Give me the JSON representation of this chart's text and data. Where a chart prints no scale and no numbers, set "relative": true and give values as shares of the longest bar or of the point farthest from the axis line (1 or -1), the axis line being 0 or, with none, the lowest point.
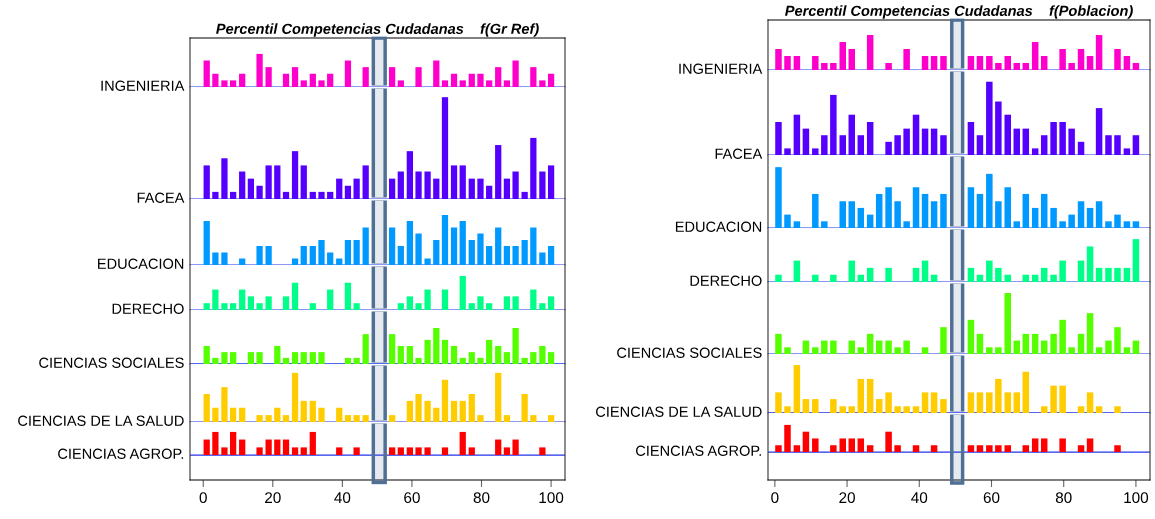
{
  "chart_data": [
    {
      "type": "bar",
      "relative": true,
      "title": "Percentil Competencias Cudadanas    f(Gr Ref)",
      "ylabel": "INGENIERIA",
      "color": "#ff00cc",
      "grid": false,
      "tick_labels": false,
      "xlim": [
        -3.8,
        104
      ],
      "x": [
        1.0,
        3.5,
        6.1,
        8.6,
        11.2,
        13.7,
        16.2,
        18.8,
        21.3,
        23.8,
        26.4,
        28.9,
        31.5,
        34.0,
        36.5,
        39.1,
        41.6,
        44.1,
        46.7,
        49.2,
        51.8,
        54.3,
        56.8,
        59.4,
        61.9,
        64.5,
        67.0,
        69.5,
        72.1,
        74.6,
        77.2,
        79.7,
        82.2,
        84.8,
        87.3,
        89.8,
        92.4,
        94.9,
        97.5,
        100.0
      ],
      "values": [
        0.8,
        0.4,
        0.2,
        0.2,
        0.4,
        null,
        1,
        0.6,
        null,
        0.4,
        0.6,
        0.2,
        0.4,
        0.2,
        0.4,
        null,
        0.8,
        null,
        0.6,
        null,
        null,
        0.6,
        0.2,
        null,
        0.6,
        null,
        0.8,
        0.2,
        0.4,
        0.2,
        0.4,
        0.4,
        0.2,
        0.6,
        0.2,
        0.8,
        null,
        0.6,
        0.2,
        0.4
      ],
      "bands": [
        {
          "axis": "x",
          "from": 48.9,
          "to": 52.3,
          "color": "#4f6f94"
        }
      ]
    },
    {
      "type": "bar",
      "relative": true,
      "ylabel": "FACEA",
      "color": "#5500ff",
      "grid": false,
      "tick_labels": false,
      "xlim": [
        -3.8,
        104
      ],
      "x": [
        1.0,
        3.5,
        6.1,
        8.6,
        11.2,
        13.7,
        16.2,
        18.8,
        21.3,
        23.8,
        26.4,
        28.9,
        31.5,
        34.0,
        36.5,
        39.1,
        41.6,
        44.1,
        46.7,
        49.2,
        51.8,
        54.3,
        56.8,
        59.4,
        61.9,
        64.5,
        67.0,
        69.5,
        72.1,
        74.6,
        77.2,
        79.7,
        82.2,
        84.8,
        87.3,
        89.8,
        92.4,
        94.9,
        97.5,
        100.0
      ],
      "values": [
        0.33,
        0.07,
        0.4,
        0.07,
        0.27,
        0.2,
        0.13,
        0.33,
        0.33,
        0.07,
        0.47,
        0.33,
        0.07,
        0.07,
        0.07,
        0.2,
        0.13,
        0.2,
        0.33,
        null,
        null,
        0.2,
        0.27,
        0.47,
        0.27,
        0.27,
        0.2,
        1,
        0.33,
        0.33,
        0.2,
        0.2,
        0.13,
        0.53,
        0.2,
        0.27,
        0.07,
        0.6,
        0.27,
        0.33
      ],
      "bands": [
        {
          "axis": "x",
          "from": 48.9,
          "to": 52.3,
          "color": "#4f6f94"
        }
      ]
    },
    {
      "type": "bar",
      "relative": true,
      "ylabel": "EDUCACION",
      "color": "#0099ff",
      "grid": false,
      "tick_labels": false,
      "xlim": [
        -3.8,
        104
      ],
      "x": [
        1.0,
        3.5,
        6.1,
        8.6,
        11.2,
        13.7,
        16.2,
        18.8,
        21.3,
        23.8,
        26.4,
        28.9,
        31.5,
        34.0,
        36.5,
        39.1,
        41.6,
        44.1,
        46.7,
        49.2,
        51.8,
        54.3,
        56.8,
        59.4,
        61.9,
        64.5,
        67.0,
        69.5,
        72.1,
        74.6,
        77.2,
        79.7,
        82.2,
        84.8,
        87.3,
        89.8,
        92.4,
        94.9,
        97.5,
        100.0
      ],
      "values": [
        0.88,
        0.25,
        0.25,
        null,
        0.13,
        null,
        0.38,
        0.38,
        null,
        null,
        0.13,
        0.38,
        0.38,
        0.5,
        0.25,
        0.13,
        0.5,
        0.5,
        0.75,
        null,
        null,
        0.75,
        0.38,
        0.88,
        0.63,
        0.13,
        0.5,
        1,
        0.75,
        0.88,
        0.5,
        0.63,
        0.38,
        0.75,
        0.38,
        0.38,
        0.5,
        0.75,
        0.25,
        0.38
      ],
      "bands": [
        {
          "axis": "x",
          "from": 48.9,
          "to": 52.3,
          "color": "#4f6f94"
        }
      ]
    },
    {
      "type": "bar",
      "relative": true,
      "ylabel": "DERECHO",
      "color": "#00ff88",
      "grid": false,
      "tick_labels": false,
      "xlim": [
        -3.8,
        104
      ],
      "x": [
        1.0,
        3.5,
        6.1,
        8.6,
        11.2,
        13.7,
        16.2,
        18.8,
        21.3,
        23.8,
        26.4,
        28.9,
        31.5,
        34.0,
        36.5,
        39.1,
        41.6,
        44.1,
        46.7,
        49.2,
        51.8,
        54.3,
        56.8,
        59.4,
        61.9,
        64.5,
        67.0,
        69.5,
        72.1,
        74.6,
        77.2,
        79.7,
        82.2,
        84.8,
        87.3,
        89.8,
        92.4,
        94.9,
        97.5,
        100.0
      ],
      "values": [
        0.2,
        0.6,
        0.2,
        0.2,
        0.6,
        0.4,
        0.2,
        0.4,
        null,
        0.4,
        0.8,
        null,
        0.2,
        null,
        0.6,
        null,
        0.8,
        0.2,
        null,
        null,
        null,
        null,
        0.2,
        0.4,
        0.2,
        0.6,
        null,
        0.6,
        null,
        1,
        0.2,
        0.4,
        0.2,
        null,
        0.4,
        0.4,
        null,
        0.6,
        0.2,
        0.4
      ],
      "bands": [
        {
          "axis": "x",
          "from": 48.9,
          "to": 52.3,
          "color": "#4f6f94"
        }
      ]
    },
    {
      "type": "bar",
      "relative": true,
      "ylabel": "CIENCIAS SOCIALES",
      "color": "#55ff00",
      "grid": false,
      "tick_labels": false,
      "xlim": [
        -3.8,
        104
      ],
      "x": [
        1.0,
        3.5,
        6.1,
        8.6,
        11.2,
        13.7,
        16.2,
        18.8,
        21.3,
        23.8,
        26.4,
        28.9,
        31.5,
        34.0,
        36.5,
        39.1,
        41.6,
        44.1,
        46.7,
        49.2,
        51.8,
        54.3,
        56.8,
        59.4,
        61.9,
        64.5,
        67.0,
        69.5,
        72.1,
        74.6,
        77.2,
        79.7,
        82.2,
        84.8,
        87.3,
        89.8,
        92.4,
        94.9,
        97.5,
        100.0
      ],
      "values": [
        0.5,
        0.17,
        0.33,
        0.33,
        null,
        0.33,
        0.33,
        null,
        0.5,
        0.17,
        0.33,
        0.33,
        0.33,
        0.33,
        null,
        null,
        0.17,
        0.17,
        0.83,
        null,
        null,
        0.83,
        0.5,
        0.5,
        0.17,
        0.67,
        1,
        0.67,
        0.5,
        0.17,
        0.33,
        0.17,
        0.67,
        0.5,
        0.33,
        1,
        0.17,
        0.33,
        0.5,
        0.33
      ],
      "bands": [
        {
          "axis": "x",
          "from": 48.9,
          "to": 52.3,
          "color": "#4f6f94"
        }
      ]
    },
    {
      "type": "bar",
      "relative": true,
      "ylabel": "CIENCIAS DE LA SALUD",
      "color": "#ffcc00",
      "grid": false,
      "tick_labels": false,
      "xlim": [
        -3.8,
        104
      ],
      "x": [
        1.0,
        3.5,
        6.1,
        8.6,
        11.2,
        13.7,
        16.2,
        18.8,
        21.3,
        23.8,
        26.4,
        28.9,
        31.5,
        34.0,
        36.5,
        39.1,
        41.6,
        44.1,
        46.7,
        49.2,
        51.8,
        54.3,
        56.8,
        59.4,
        61.9,
        64.5,
        67.0,
        69.5,
        72.1,
        74.6,
        77.2,
        79.7,
        82.2,
        84.8,
        87.3,
        89.8,
        92.4,
        94.9,
        97.5,
        100.0
      ],
      "values": [
        0.57,
        0.29,
        0.71,
        0.29,
        0.29,
        null,
        0.14,
        0.14,
        0.29,
        0.14,
        1,
        0.43,
        0.43,
        0.29,
        null,
        0.29,
        0.14,
        0.14,
        0.14,
        null,
        null,
        0.14,
        null,
        0.43,
        0.57,
        0.43,
        0.29,
        0.86,
        0.43,
        0.43,
        0.57,
        0.14,
        null,
        1,
        0.14,
        null,
        0.57,
        0.14,
        null,
        0.14
      ],
      "bands": [
        {
          "axis": "x",
          "from": 48.9,
          "to": 52.3,
          "color": "#4f6f94"
        }
      ]
    },
    {
      "type": "bar",
      "relative": true,
      "ylabel": "CIENCIAS AGROP.",
      "color": "#ff0000",
      "grid": false,
      "tick_labels": "x",
      "xlim": [
        -3.8,
        104
      ],
      "xticks": [
        0,
        20,
        40,
        60,
        80,
        100
      ],
      "x": [
        1.0,
        3.5,
        6.1,
        8.6,
        11.2,
        13.7,
        16.2,
        18.8,
        21.3,
        23.8,
        26.4,
        28.9,
        31.5,
        34.0,
        36.5,
        39.1,
        41.6,
        44.1,
        46.7,
        49.2,
        51.8,
        54.3,
        56.8,
        59.4,
        61.9,
        64.5,
        67.0,
        69.5,
        72.1,
        74.6,
        77.2,
        79.7,
        82.2,
        84.8,
        87.3,
        89.8,
        92.4,
        94.9,
        97.5
      ],
      "values": [
        0.67,
        1,
        0.33,
        1,
        0.67,
        null,
        0.33,
        0.67,
        0.67,
        0.67,
        0.33,
        0.33,
        1,
        null,
        null,
        0.33,
        null,
        0.33,
        null,
        null,
        null,
        0.33,
        0.33,
        0.33,
        0.33,
        0.33,
        null,
        0.33,
        null,
        1,
        0.33,
        null,
        null,
        0.67,
        0.33,
        0.67,
        null,
        null,
        0.33
      ],
      "bands": [
        {
          "axis": "x",
          "from": 48.9,
          "to": 52.3,
          "color": "#4f6f94"
        }
      ]
    },
    {
      "type": "bar",
      "relative": true,
      "title": "Percentil Competencias Cudadanas    f(Poblacion)",
      "ylabel": "INGENIERIA",
      "color": "#ff00cc",
      "grid": false,
      "tick_labels": false,
      "xlim": [
        -1.9,
        103.9
      ],
      "x": [
        1.0,
        3.5,
        6.1,
        8.6,
        11.2,
        13.7,
        16.2,
        18.8,
        21.3,
        23.8,
        26.4,
        28.9,
        31.5,
        34.0,
        36.5,
        39.1,
        41.6,
        44.1,
        46.7,
        49.2,
        51.8,
        54.3,
        56.8,
        59.4,
        61.9,
        64.5,
        67.0,
        69.5,
        72.1,
        74.6,
        77.2,
        79.7,
        82.2,
        84.8,
        87.3,
        89.8,
        92.4,
        94.9,
        97.5,
        100.0
      ],
      "values": [
        0.6,
        0.4,
        0.4,
        null,
        0.4,
        0.2,
        0.2,
        0.8,
        0.6,
        null,
        1,
        null,
        0.2,
        null,
        0.6,
        null,
        0.4,
        0.4,
        0.4,
        null,
        null,
        0.4,
        0.4,
        0.4,
        0.2,
        0.4,
        0.2,
        0.2,
        0.8,
        0.4,
        null,
        0.6,
        0.2,
        0.6,
        0.4,
        1,
        null,
        0.6,
        0.4,
        0.2
      ],
      "bands": [
        {
          "axis": "x",
          "from": 49,
          "to": 52,
          "color": "#4f6f94"
        }
      ]
    },
    {
      "type": "bar",
      "relative": true,
      "ylabel": "FACEA",
      "color": "#5500ff",
      "grid": false,
      "tick_labels": false,
      "xlim": [
        -1.9,
        103.9
      ],
      "x": [
        1.0,
        3.5,
        6.1,
        8.6,
        11.2,
        13.7,
        16.2,
        18.8,
        21.3,
        23.8,
        26.4,
        28.9,
        31.5,
        34.0,
        36.5,
        39.1,
        41.6,
        44.1,
        46.7,
        49.2,
        51.8,
        54.3,
        56.8,
        59.4,
        61.9,
        64.5,
        67.0,
        69.5,
        72.1,
        74.6,
        77.2,
        79.7,
        82.2,
        84.8,
        87.3,
        89.8,
        92.4,
        94.9,
        97.5,
        100.0
      ],
      "values": [
        0.45,
        0.09,
        0.55,
        0.36,
        0.09,
        0.27,
        0.82,
        0.27,
        0.55,
        0.27,
        0.45,
        null,
        0.18,
        0.27,
        0.36,
        0.55,
        0.36,
        0.36,
        0.27,
        null,
        null,
        0.45,
        0.27,
        1,
        0.73,
        0.55,
        0.36,
        0.36,
        0.09,
        0.27,
        0.45,
        0.45,
        0.36,
        0.18,
        null,
        0.64,
        0.27,
        0.27,
        0.09,
        0.27
      ],
      "bands": [
        {
          "axis": "x",
          "from": 49,
          "to": 52,
          "color": "#4f6f94"
        }
      ]
    },
    {
      "type": "bar",
      "relative": true,
      "ylabel": "EDUCACION",
      "color": "#0099ff",
      "grid": false,
      "tick_labels": false,
      "xlim": [
        -1.9,
        103.9
      ],
      "x": [
        1.0,
        3.5,
        6.1,
        8.6,
        11.2,
        13.7,
        16.2,
        18.8,
        21.3,
        23.8,
        26.4,
        28.9,
        31.5,
        34.0,
        36.5,
        39.1,
        41.6,
        44.1,
        46.7,
        49.2,
        51.8,
        54.3,
        56.8,
        59.4,
        61.9,
        64.5,
        67.0,
        69.5,
        72.1,
        74.6,
        77.2,
        79.7,
        82.2,
        84.8,
        87.3,
        89.8,
        92.4,
        94.9,
        97.5,
        100.0
      ],
      "values": [
        1,
        0.22,
        0.11,
        null,
        0.56,
        0.11,
        null,
        0.44,
        0.44,
        0.33,
        0.22,
        0.56,
        0.67,
        0.44,
        0.11,
        0.67,
        0.56,
        0.44,
        0.56,
        null,
        null,
        0.67,
        0.56,
        0.89,
        0.44,
        0.67,
        0.11,
        0.56,
        0.33,
        0.56,
        0.33,
        0.11,
        0.22,
        0.44,
        0.33,
        0.44,
        0.11,
        0.22,
        0.11,
        0.11
      ],
      "bands": [
        {
          "axis": "x",
          "from": 49,
          "to": 52,
          "color": "#4f6f94"
        }
      ]
    },
    {
      "type": "bar",
      "relative": true,
      "ylabel": "DERECHO",
      "color": "#00ff88",
      "grid": false,
      "tick_labels": false,
      "xlim": [
        -1.9,
        103.9
      ],
      "x": [
        1.0,
        3.5,
        6.1,
        8.6,
        11.2,
        13.7,
        16.2,
        18.8,
        21.3,
        23.8,
        26.4,
        28.9,
        31.5,
        34.0,
        36.5,
        39.1,
        41.6,
        44.1,
        46.7,
        49.2,
        51.8,
        54.3,
        56.8,
        59.4,
        61.9,
        64.5,
        67.0,
        69.5,
        72.1,
        74.6,
        77.2,
        79.7,
        82.2,
        84.8,
        87.3,
        89.8,
        92.4,
        94.9,
        97.5,
        100.0
      ],
      "values": [
        0.17,
        null,
        0.5,
        null,
        0.17,
        null,
        0.17,
        null,
        0.5,
        0.17,
        0.33,
        null,
        0.33,
        null,
        null,
        0.33,
        0.5,
        0.17,
        null,
        null,
        null,
        0.33,
        0.17,
        0.5,
        0.33,
        0.17,
        null,
        0.17,
        0.17,
        0.33,
        0.17,
        0.5,
        null,
        0.5,
        0.83,
        0.33,
        0.33,
        0.33,
        0.33,
        1
      ],
      "bands": [
        {
          "axis": "x",
          "from": 49,
          "to": 52,
          "color": "#4f6f94"
        }
      ]
    },
    {
      "type": "bar",
      "relative": true,
      "ylabel": "CIENCIAS SOCIALES",
      "color": "#55ff00",
      "grid": false,
      "tick_labels": false,
      "xlim": [
        -1.9,
        103.9
      ],
      "x": [
        1.0,
        3.5,
        6.1,
        8.6,
        11.2,
        13.7,
        16.2,
        18.8,
        21.3,
        23.8,
        26.4,
        28.9,
        31.5,
        34.0,
        36.5,
        39.1,
        41.6,
        44.1,
        46.7,
        49.2,
        51.8,
        54.3,
        56.8,
        59.4,
        61.9,
        64.5,
        67.0,
        69.5,
        72.1,
        74.6,
        77.2,
        79.7,
        82.2,
        84.8,
        87.3,
        89.8,
        92.4,
        94.9,
        97.5,
        100.0
      ],
      "values": [
        0.33,
        0.11,
        null,
        0.22,
        0.11,
        0.22,
        0.22,
        null,
        0.22,
        0.11,
        0.33,
        0.22,
        0.22,
        0.11,
        0.22,
        null,
        0.11,
        null,
        0.44,
        null,
        null,
        0.56,
        0.33,
        0.11,
        0.11,
        1,
        0.22,
        0.33,
        0.33,
        0.22,
        0.33,
        0.56,
        0.11,
        0.33,
        0.67,
        0.11,
        0.22,
        0.44,
        0.11,
        0.22
      ],
      "bands": [
        {
          "axis": "x",
          "from": 49,
          "to": 52,
          "color": "#4f6f94"
        }
      ]
    },
    {
      "type": "bar",
      "relative": true,
      "ylabel": "CIENCIAS DE LA SALUD",
      "color": "#ffcc00",
      "grid": false,
      "tick_labels": false,
      "xlim": [
        -1.9,
        103.9
      ],
      "x": [
        1.0,
        3.5,
        6.1,
        8.6,
        11.2,
        13.7,
        16.2,
        18.8,
        21.3,
        23.8,
        26.4,
        28.9,
        31.5,
        34.0,
        36.5,
        39.1,
        41.6,
        44.1,
        46.7,
        49.2,
        51.8,
        54.3,
        56.8,
        59.4,
        61.9,
        64.5,
        67.0,
        69.5,
        72.1,
        74.6,
        77.2,
        79.7,
        82.2,
        84.8,
        87.3,
        89.8,
        92.4,
        94.9
      ],
      "values": [
        0.43,
        0.14,
        1,
        0.29,
        0.29,
        null,
        0.29,
        0.14,
        0.14,
        0.71,
        0.71,
        0.29,
        0.43,
        0.14,
        0.14,
        0.14,
        0.43,
        0.43,
        0.29,
        null,
        null,
        0.43,
        0.43,
        0.43,
        0.71,
        0.43,
        0.43,
        0.86,
        null,
        0.14,
        0.57,
        0.57,
        null,
        0.14,
        0.43,
        0.14,
        null,
        0.14
      ],
      "bands": [
        {
          "axis": "x",
          "from": 49,
          "to": 52,
          "color": "#4f6f94"
        }
      ]
    },
    {
      "type": "bar",
      "relative": true,
      "ylabel": "CIENCIAS AGROP.",
      "color": "#ff0000",
      "grid": false,
      "tick_labels": "x",
      "xlim": [
        -1.9,
        103.9
      ],
      "xticks": [
        0,
        20,
        40,
        60,
        80,
        100
      ],
      "x": [
        1.0,
        3.5,
        6.1,
        8.6,
        11.2,
        13.7,
        16.2,
        18.8,
        21.3,
        23.8,
        26.4,
        28.9,
        31.5,
        34.0,
        36.5,
        39.1,
        41.6,
        44.1,
        46.7,
        49.2,
        51.8,
        54.3,
        56.8,
        59.4,
        61.9,
        64.5,
        67.0,
        69.5,
        72.1,
        74.6,
        77.2,
        79.7,
        82.2,
        84.8,
        87.3,
        89.8,
        92.4,
        94.9
      ],
      "values": [
        0.25,
        1,
        0.25,
        0.75,
        0.5,
        null,
        0.25,
        0.5,
        0.5,
        0.5,
        0.25,
        null,
        0.75,
        0.25,
        null,
        0.25,
        null,
        0.25,
        null,
        null,
        null,
        0.25,
        0.25,
        0.25,
        0.25,
        0.25,
        null,
        0.25,
        0.5,
        0.5,
        null,
        0.5,
        null,
        0.25,
        0.5,
        null,
        null,
        0.25
      ],
      "bands": [
        {
          "axis": "x",
          "from": 49,
          "to": 52,
          "color": "#4f6f94"
        }
      ]
    }
  ]
}
